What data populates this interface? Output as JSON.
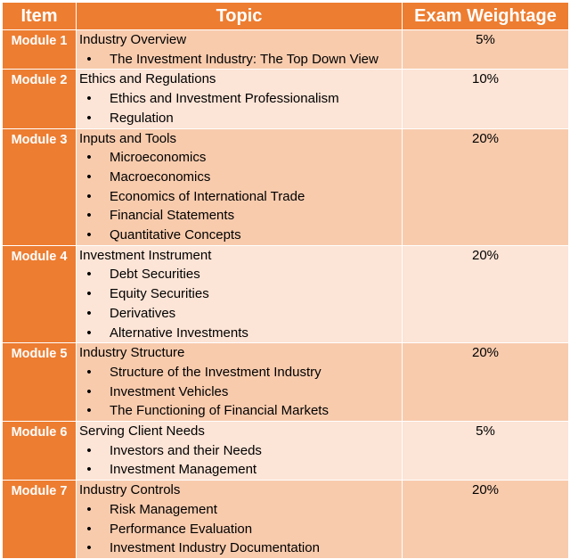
{
  "headers": {
    "item": "Item",
    "topic": "Topic",
    "weight": "Exam Weightage"
  },
  "bullet_glyph": "•",
  "rows": [
    {
      "item": "Module 1",
      "title": "Industry Overview",
      "bullets": [
        "The Investment Industry: The Top Down View"
      ],
      "weight": "5%"
    },
    {
      "item": "Module 2",
      "title": "Ethics and Regulations",
      "bullets": [
        "Ethics and Investment Professionalism",
        "Regulation"
      ],
      "weight": "10%"
    },
    {
      "item": "Module 3",
      "title": "Inputs and Tools",
      "bullets": [
        "Microeconomics",
        "Macroeconomics",
        "Economics of International Trade",
        "Financial Statements",
        "Quantitative Concepts"
      ],
      "weight": "20%"
    },
    {
      "item": "Module 4",
      "title": "Investment Instrument",
      "bullets": [
        "Debt Securities",
        "Equity Securities",
        "Derivatives",
        "Alternative Investments"
      ],
      "weight": "20%"
    },
    {
      "item": "Module 5",
      "title": "Industry Structure",
      "bullets": [
        "Structure of the Investment Industry",
        "Investment Vehicles",
        "The Functioning of Financial Markets"
      ],
      "weight": "20%"
    },
    {
      "item": "Module 6",
      "title": "Serving Client Needs",
      "bullets": [
        "Investors and their Needs",
        "Investment Management"
      ],
      "weight": "5%"
    },
    {
      "item": "Module 7",
      "title": "Industry Controls",
      "bullets": [
        "Risk Management",
        "Performance Evaluation",
        "Investment Industry Documentation"
      ],
      "weight": "20%"
    }
  ],
  "colors": {
    "header_bg": "#ed7d31",
    "row_dark": "#f8cbad",
    "row_light": "#fce4d6",
    "border": "#ffffff"
  }
}
